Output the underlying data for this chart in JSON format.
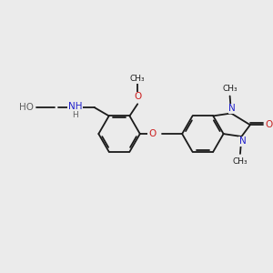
{
  "bg_color": "#ebebeb",
  "bond_color": "#1a1a1a",
  "N_color": "#2020cc",
  "O_color": "#cc2020",
  "H_color": "#606060",
  "font_size": 7.0,
  "bond_width": 1.3,
  "figsize": [
    3.0,
    3.0
  ],
  "dpi": 100,
  "xlim": [
    0,
    10
  ],
  "ylim": [
    0,
    10
  ]
}
